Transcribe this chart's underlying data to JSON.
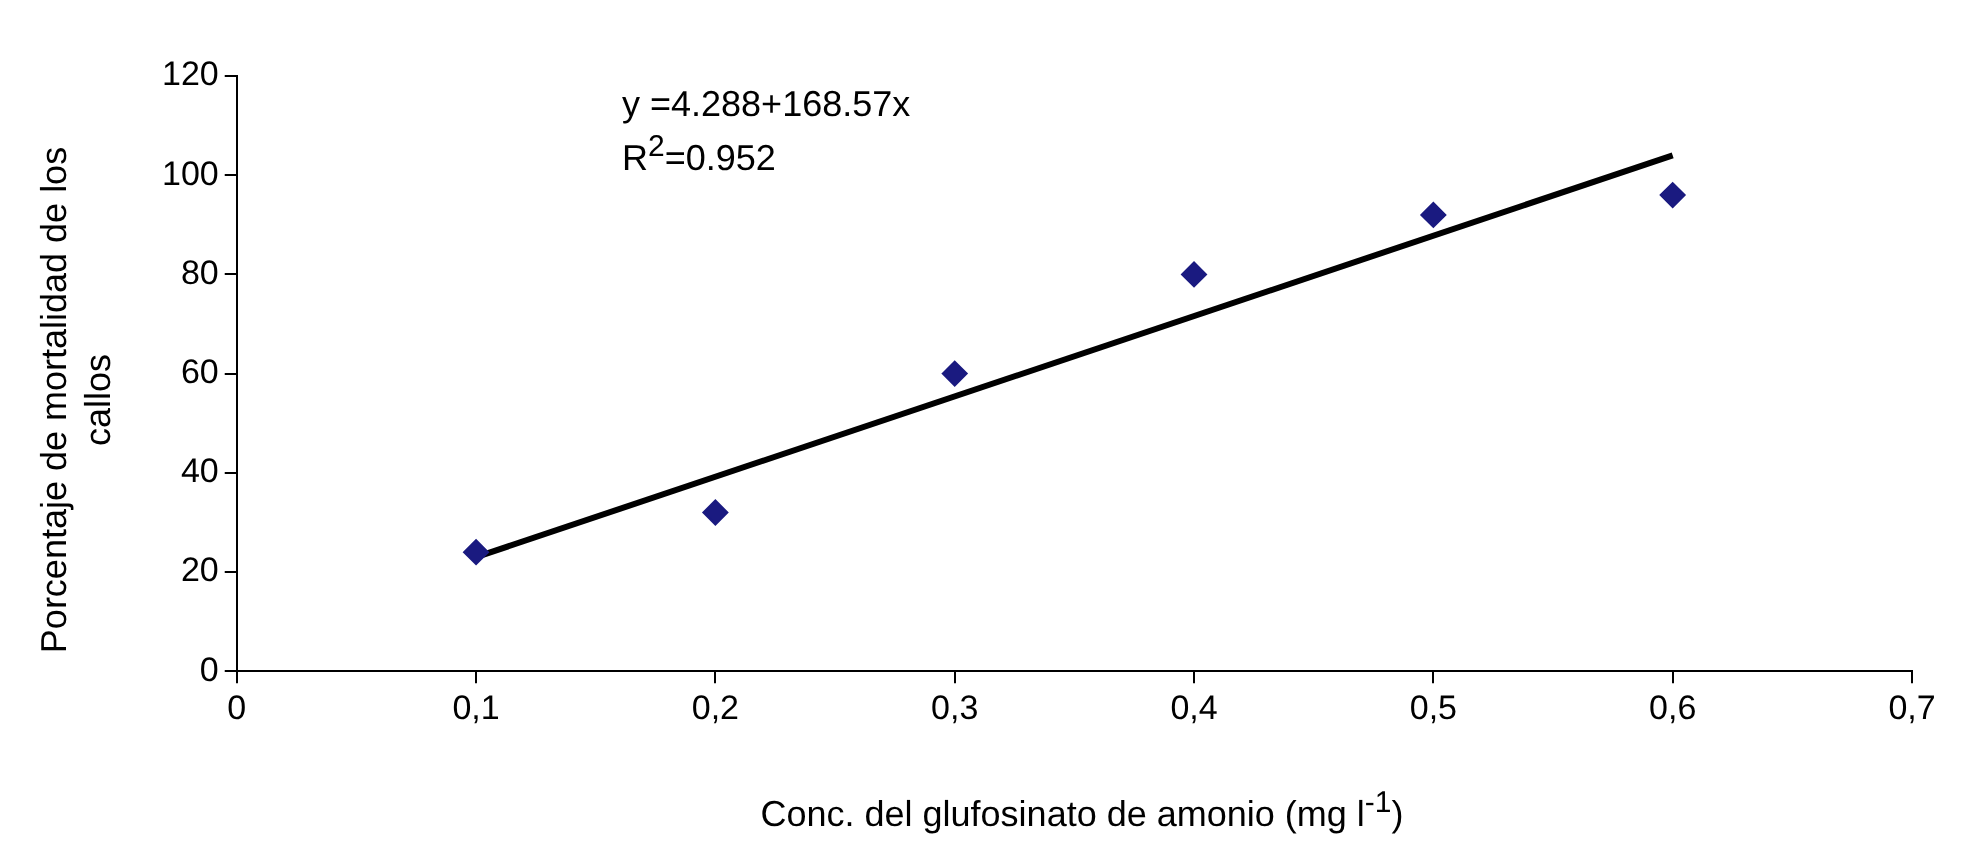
{
  "chart_data": {
    "type": "scatter",
    "xlabel": "Conc. del glufosinato de amonio (mg l$^{-1}$)",
    "ylabel": "Porcentaje de mortalidad de los callos",
    "x": [
      0.1,
      0.2,
      0.3,
      0.4,
      0.5,
      0.6
    ],
    "series": [
      {
        "type": "scatter",
        "color": "#1a1a80",
        "marker": "diamond",
        "values": [
          24,
          32,
          60,
          80,
          92,
          96
        ]
      },
      {
        "type": "line",
        "color": "#000000",
        "x": [
          0.1,
          0.6
        ],
        "values": [
          23,
          104
        ]
      }
    ],
    "xlim": [
      0,
      0.7
    ],
    "xticks": [
      0,
      {
        "value": 0.1,
        "label": "0,1"
      },
      {
        "value": 0.2,
        "label": "0,2"
      },
      {
        "value": 0.3,
        "label": "0,3"
      },
      {
        "value": 0.4,
        "label": "0,4"
      },
      {
        "value": 0.5,
        "label": "0,5"
      },
      {
        "value": 0.6,
        "label": "0,6"
      },
      {
        "value": 0.7,
        "label": "0,7"
      }
    ],
    "ylim": [
      0,
      120
    ],
    "yticks": [
      0,
      20,
      40,
      60,
      80,
      100,
      120
    ],
    "annotations": [
      "y =4.288+168.57x",
      "R$^{2}$=0.952"
    ],
    "grid": false,
    "legend": false,
    "line_style": "solid"
  }
}
